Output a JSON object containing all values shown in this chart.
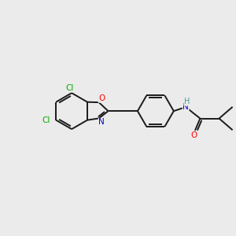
{
  "background_color": "#ebebeb",
  "bond_color": "#1a1a1a",
  "atom_colors": {
    "C": "#1a1a1a",
    "N": "#0000cc",
    "O": "#ff0000",
    "Cl": "#00aa00",
    "H": "#4a9a9a"
  },
  "figsize": [
    3.0,
    3.0
  ],
  "dpi": 100,
  "lw": 1.4,
  "fontsize": 7.5
}
